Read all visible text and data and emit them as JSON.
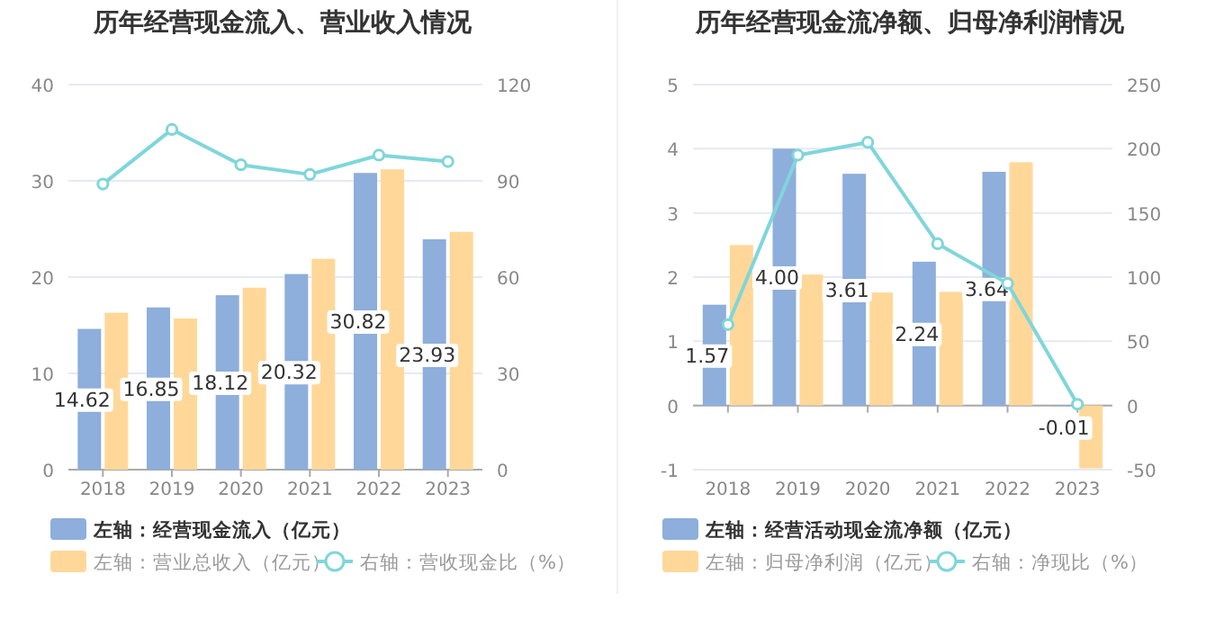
{
  "chart_data": [
    {
      "type": "bar",
      "title": "历年经营现金流入、营业收入情况",
      "categories": [
        "2018",
        "2019",
        "2020",
        "2021",
        "2022",
        "2023"
      ],
      "ylim": [
        0,
        40
      ],
      "yticks": [
        0,
        10,
        20,
        30,
        40
      ],
      "y2lim": [
        0,
        120
      ],
      "y2ticks": [
        0,
        30,
        60,
        90,
        120
      ],
      "grid": "y",
      "legend": "bottom",
      "series": [
        {
          "name": "左轴：经营现金流入（亿元）",
          "color": "#8eaedb",
          "values": [
            14.62,
            16.85,
            18.12,
            20.32,
            30.82,
            23.93
          ],
          "value_labels": [
            "14.62",
            "16.85",
            "18.12",
            "20.32",
            "30.82",
            "23.93"
          ]
        },
        {
          "name": "左轴：营业总收入（亿元）",
          "color": "#ffd899",
          "values": [
            16.3,
            15.7,
            18.9,
            21.9,
            31.2,
            24.7
          ]
        },
        {
          "name": "右轴：营收现金比（%）",
          "type": "line",
          "axis": "y2",
          "marker": "circle",
          "color": "#7fd6da",
          "values": [
            89,
            106,
            95,
            92,
            98,
            96
          ]
        }
      ]
    },
    {
      "type": "bar",
      "title": "历年经营现金流净额、归母净利润情况",
      "categories": [
        "2018",
        "2019",
        "2020",
        "2021",
        "2022",
        "2023"
      ],
      "ylim": [
        -1,
        5
      ],
      "yticks": [
        -1,
        0,
        1,
        2,
        3,
        4,
        5
      ],
      "y2lim": [
        -50,
        250
      ],
      "y2ticks": [
        -50,
        0,
        50,
        100,
        150,
        200,
        250
      ],
      "grid": "y",
      "legend": "bottom",
      "series": [
        {
          "name": "左轴：经营活动现金流净额（亿元）",
          "color": "#8eaedb",
          "values": [
            1.57,
            4.0,
            3.61,
            2.24,
            3.64,
            -0.01
          ],
          "value_labels": [
            "1.57",
            "4.00",
            "3.61",
            "2.24",
            "3.64",
            "-0.01"
          ]
        },
        {
          "name": "左轴：归母净利润（亿元）",
          "color": "#ffd899",
          "values": [
            2.5,
            2.04,
            1.76,
            1.77,
            3.79,
            -0.98
          ]
        },
        {
          "name": "右轴：净现比（%）",
          "type": "line",
          "axis": "y2",
          "marker": "circle",
          "color": "#7fd6da",
          "values": [
            63,
            195,
            205,
            126,
            95,
            1
          ]
        }
      ]
    }
  ]
}
